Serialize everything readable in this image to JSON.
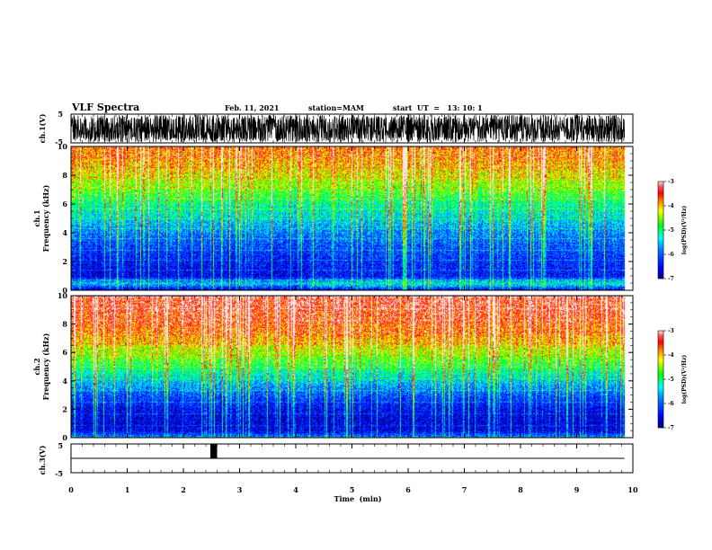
{
  "header": {
    "title": "VLF Spectra",
    "date": "Feb. 11, 2021",
    "station": "station=MAM",
    "start": "start  UT  =   13: 10: 1"
  },
  "colors": {
    "spectrum": [
      "#00007f",
      "#0000ff",
      "#0080ff",
      "#00ffff",
      "#00ff00",
      "#ffff00",
      "#ff8000",
      "#ff0000",
      "#ff5a5a",
      "#ffe6e6"
    ]
  },
  "chart_data": [
    {
      "type": "line",
      "name": "ch1-waveform",
      "ylabel": "ch.1(V)",
      "ylim": [
        -5,
        5
      ],
      "y_ticks": [
        "5",
        "-5"
      ],
      "x_range_min": [
        0,
        9.85
      ],
      "amplitude_V": [
        -4.8,
        4.8
      ],
      "pattern": "dense impulsive spikes across the full record"
    },
    {
      "type": "heatmap",
      "name": "ch1-spectrogram",
      "ylabel": "ch.1\nFrequency  (kHz)",
      "ylim": [
        0,
        10
      ],
      "y_ticks": [
        "0",
        "2",
        "4",
        "6",
        "8",
        "10"
      ],
      "x_range_min": [
        0,
        9.85
      ],
      "colorbar": {
        "label": "log(PSD)(V²/Hz)",
        "ticks": [
          "-3",
          "-4",
          "-5",
          "-6",
          "-7"
        ],
        "range": [
          -7,
          -3
        ]
      },
      "profile_freq_kHz": [
        0,
        0.5,
        1,
        2,
        3,
        4,
        5,
        6,
        7,
        8,
        9,
        10
      ],
      "profile_logPSD": [
        -6.8,
        -5.0,
        -6.6,
        -6.4,
        -6.1,
        -5.8,
        -5.4,
        -5.1,
        -4.6,
        -4.2,
        -3.9,
        -3.7
      ],
      "segments_min": [
        [
          0,
          4.2,
          -6.6
        ],
        [
          4.2,
          9.85,
          -5.9
        ]
      ]
    },
    {
      "type": "heatmap",
      "name": "ch2-spectrogram",
      "ylabel": "ch.2\nFrequency  (kHz)",
      "ylim": [
        0,
        10
      ],
      "y_ticks": [
        "0",
        "2",
        "4",
        "6",
        "8",
        "10"
      ],
      "x_range_min": [
        0,
        9.85
      ],
      "colorbar": {
        "label": "log(PSD)(V²/Hz)",
        "ticks": [
          "-3",
          "-4",
          "-5",
          "-6",
          "-7"
        ],
        "range": [
          -7,
          -3
        ]
      },
      "profile_freq_kHz": [
        0,
        0.5,
        1,
        2,
        3,
        4,
        5,
        6,
        7,
        8,
        9,
        10
      ],
      "profile_logPSD": [
        -5.3,
        -6.6,
        -6.7,
        -6.5,
        -6.0,
        -5.4,
        -4.9,
        -4.4,
        -3.9,
        -3.6,
        -3.4,
        -3.3
      ],
      "segments_min": [
        [
          0,
          9.85,
          -6.5
        ]
      ]
    },
    {
      "type": "line",
      "name": "ch3-trace",
      "ylabel": "ch.3(V)",
      "ylim": [
        -5,
        5
      ],
      "y_ticks": [
        "5",
        "-5"
      ],
      "x_range_min": [
        0,
        9.85
      ],
      "baseline_V": 0,
      "pulse": {
        "start_min": 2.48,
        "end_min": 2.6,
        "high_V": 5,
        "low_V": 0
      }
    }
  ],
  "x_axis": {
    "label": "Time  (min)",
    "ticks": [
      "0",
      "1",
      "2",
      "3",
      "4",
      "5",
      "6",
      "7",
      "8",
      "9",
      "10"
    ],
    "range": [
      0,
      10
    ]
  }
}
